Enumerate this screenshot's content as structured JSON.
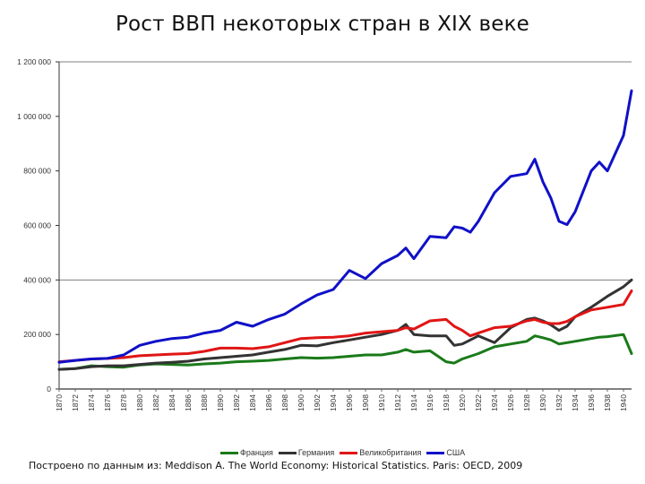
{
  "title": "Рост ВВП некоторых стран в XIX веке",
  "source": "Построено по данным из: Meddison A. The World Economy: Historical Statistics. Paris: OECD, 2009",
  "legend": [
    {
      "label": "Франция",
      "color": "#1a7a1a"
    },
    {
      "label": "Германия",
      "color": "#333333"
    },
    {
      "label": "Великобритания",
      "color": "#e01515"
    },
    {
      "label": "США",
      "color": "#1010c8"
    }
  ],
  "chart_data": {
    "type": "line",
    "title": "Рост ВВП некоторых стран в XIX веке",
    "xlabel": "",
    "ylabel": "",
    "ylim": [
      0,
      1200000
    ],
    "xlim": [
      1870,
      1941
    ],
    "yticks": [
      "0",
      "200 000",
      "400 000",
      "600 000",
      "800 000",
      "1 000 000",
      "1 200 000"
    ],
    "xticks": [
      "1870",
      "1872",
      "1874",
      "1876",
      "1878",
      "1880",
      "1882",
      "1884",
      "1886",
      "1888",
      "1890",
      "1892",
      "1894",
      "1896",
      "1898",
      "1900",
      "1902",
      "1904",
      "1906",
      "1908",
      "1910",
      "1912",
      "1914",
      "1916",
      "1918",
      "1920",
      "1922",
      "1924",
      "1926",
      "1928",
      "1930",
      "1932",
      "1934",
      "1936",
      "1938",
      "1940"
    ],
    "gridlines_y": [
      400000,
      1200000
    ],
    "legend_position": "bottom",
    "x": [
      1870,
      1872,
      1874,
      1876,
      1878,
      1880,
      1882,
      1884,
      1886,
      1888,
      1890,
      1892,
      1894,
      1896,
      1898,
      1900,
      1902,
      1904,
      1906,
      1908,
      1910,
      1912,
      1913,
      1914,
      1916,
      1918,
      1919,
      1920,
      1921,
      1922,
      1924,
      1926,
      1928,
      1929,
      1930,
      1931,
      1932,
      1933,
      1934,
      1936,
      1937,
      1938,
      1940,
      1941
    ],
    "series": [
      {
        "name": "Франция",
        "color": "#1a7a1a",
        "values": [
          72000,
          75000,
          85000,
          82000,
          80000,
          88000,
          92000,
          90000,
          88000,
          92000,
          95000,
          100000,
          102000,
          105000,
          110000,
          115000,
          113000,
          115000,
          120000,
          125000,
          125000,
          135000,
          145000,
          135000,
          140000,
          100000,
          95000,
          110000,
          120000,
          130000,
          155000,
          165000,
          175000,
          195000,
          188000,
          180000,
          165000,
          170000,
          175000,
          185000,
          190000,
          192000,
          200000,
          130000
        ]
      },
      {
        "name": "Германия",
        "color": "#333333",
        "values": [
          72000,
          75000,
          82000,
          85000,
          85000,
          90000,
          95000,
          98000,
          102000,
          110000,
          115000,
          120000,
          125000,
          135000,
          145000,
          160000,
          158000,
          170000,
          180000,
          190000,
          200000,
          215000,
          237000,
          200000,
          195000,
          195000,
          160000,
          165000,
          180000,
          195000,
          170000,
          225000,
          255000,
          260000,
          250000,
          235000,
          215000,
          230000,
          265000,
          300000,
          320000,
          340000,
          375000,
          400000
        ]
      },
      {
        "name": "Великобритания",
        "color": "#e01515",
        "values": [
          100000,
          105000,
          110000,
          112000,
          115000,
          122000,
          125000,
          128000,
          130000,
          138000,
          150000,
          150000,
          148000,
          155000,
          170000,
          185000,
          188000,
          190000,
          195000,
          205000,
          210000,
          215000,
          225000,
          220000,
          250000,
          255000,
          230000,
          215000,
          195000,
          205000,
          225000,
          230000,
          250000,
          255000,
          245000,
          240000,
          240000,
          248000,
          265000,
          290000,
          295000,
          300000,
          310000,
          360000
        ]
      },
      {
        "name": "США",
        "color": "#1010c8",
        "values": [
          98000,
          105000,
          110000,
          112000,
          125000,
          160000,
          175000,
          185000,
          190000,
          205000,
          215000,
          245000,
          230000,
          255000,
          275000,
          312000,
          345000,
          365000,
          435000,
          405000,
          460000,
          490000,
          517000,
          478000,
          560000,
          555000,
          595000,
          590000,
          575000,
          615000,
          720000,
          780000,
          790000,
          843000,
          760000,
          700000,
          615000,
          603000,
          650000,
          800000,
          832000,
          800000,
          930000,
          1094000
        ]
      }
    ]
  }
}
